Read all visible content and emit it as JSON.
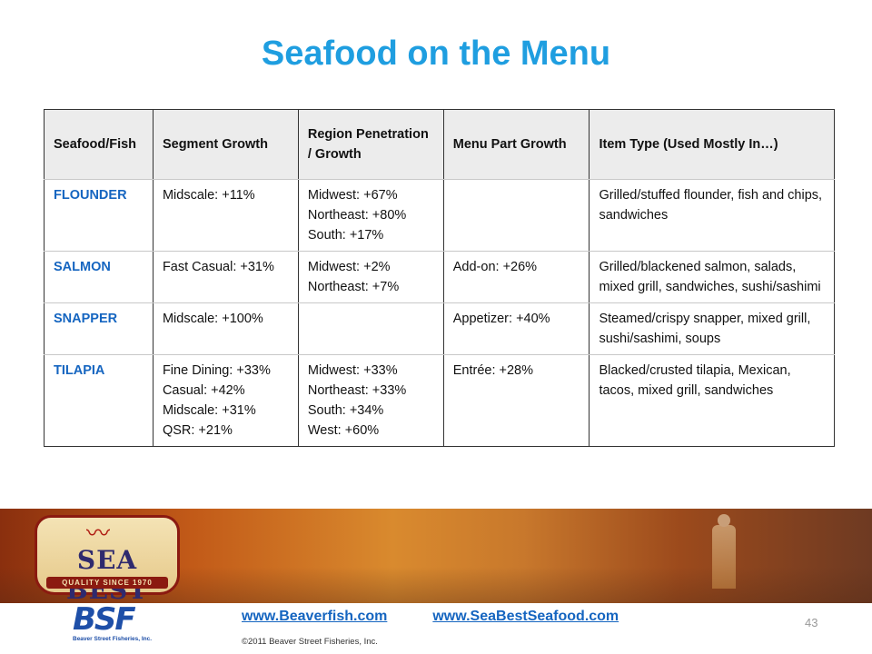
{
  "title": "Seafood on the Menu",
  "table": {
    "headers": [
      "Seafood/Fish",
      "Segment Growth",
      "Region Penetration / Growth",
      "Menu Part Growth",
      "Item Type (Used Mostly In…)"
    ],
    "rows": [
      {
        "fish": "FLOUNDER",
        "segment": [
          "Midscale: +11%"
        ],
        "region": [
          "Midwest: +67%",
          "Northeast: +80%",
          "South: +17%"
        ],
        "menu_part": "",
        "item_type": "Grilled/stuffed flounder, fish and chips, sandwiches"
      },
      {
        "fish": "SALMON",
        "segment": [
          "Fast Casual: +31%"
        ],
        "region": [
          "Midwest: +2%",
          "Northeast: +7%"
        ],
        "menu_part": "Add-on: +26%",
        "item_type": "Grilled/blackened salmon, salads, mixed grill, sandwiches, sushi/sashimi"
      },
      {
        "fish": "SNAPPER",
        "segment": [
          "Midscale: +100%"
        ],
        "region": [],
        "menu_part": "Appetizer: +40%",
        "item_type": "Steamed/crispy snapper, mixed grill,  sushi/sashimi, soups"
      },
      {
        "fish": "TILAPIA",
        "segment": [
          "Fine Dining: +33%",
          "Casual: +42%",
          "Midscale: +31%",
          "QSR: +21%"
        ],
        "region": [
          "Midwest: +33%",
          "Northeast: +33%",
          "South: +34%",
          "West: +60%"
        ],
        "menu_part": "Entrée: +28%",
        "item_type": "Blacked/crusted tilapia, Mexican,  tacos, mixed grill, sandwiches"
      }
    ]
  },
  "footer": {
    "seabest_logo": {
      "brand": "SEA BEST",
      "tagline": "QUALITY SINCE 1970"
    },
    "bsf_logo": {
      "mark": "BSF",
      "name": "Beaver Street Fisheries, Inc."
    },
    "links": [
      "www.Beaverfish.com",
      "www.SeaBestSeafood.com"
    ],
    "copyright": "©2011 Beaver Street Fisheries, Inc.",
    "page_number": "43"
  },
  "colors": {
    "title": "#1f9ee0",
    "fish_name": "#1565c0",
    "header_bg": "#ececec"
  },
  "icons": {
    "seabest_bird": "seagull-icon"
  }
}
